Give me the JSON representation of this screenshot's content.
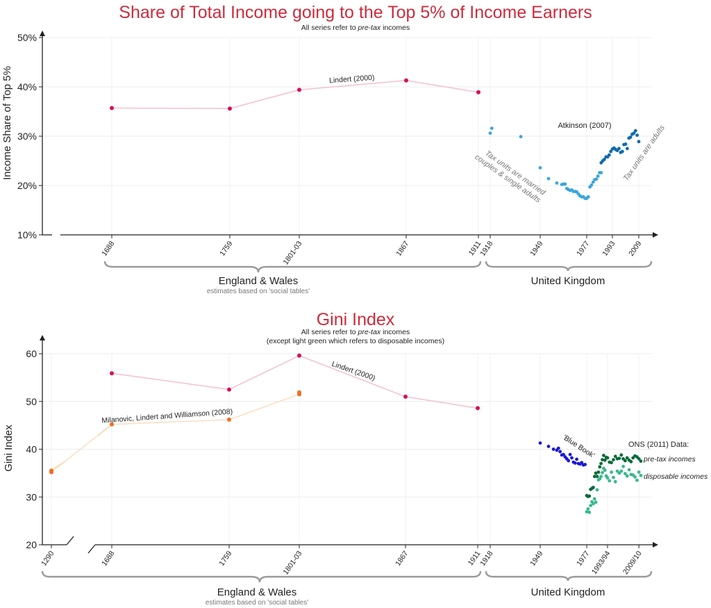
{
  "chart_data": [
    {
      "type": "scatter",
      "title": "Share of Total Income going to the Top 5% of Income Earners",
      "subtitle_prefix": "All series refer to ",
      "subtitle_em": "pre-tax",
      "subtitle_suffix": " incomes",
      "ylabel": "Income Share of Top 5%",
      "ylim": [
        10,
        50
      ],
      "y_ticks": [
        "10%",
        "20%",
        "30%",
        "40%",
        "50%"
      ],
      "x_ticks": [
        "1688",
        "1759",
        "1801-03",
        "1867",
        "1911",
        "1918",
        "1949",
        "1977",
        "1993",
        "2009"
      ],
      "regions": [
        {
          "label": "England & Wales",
          "sublabel": "estimates based on 'social tables'"
        },
        {
          "label": "United Kingdom",
          "sublabel": ""
        }
      ],
      "annotations": [
        "Lindert (2000)",
        "Atkinson (2007)",
        "Tax units are married couples & single adults",
        "Tax units are adults"
      ],
      "series": [
        {
          "name": "Lindert (2000)",
          "color": "#d6105a",
          "line_color": "#f4c4cf",
          "points": [
            [
              1688,
              35.7
            ],
            [
              1759,
              35.6
            ],
            [
              1801,
              39.4
            ],
            [
              1867,
              41.3
            ],
            [
              1911,
              38.9
            ]
          ]
        },
        {
          "name": "Atkinson (2007) - tax units are married couples & single adults",
          "color": "#3aa6dc",
          "points": [
            [
              1918,
              30.6
            ],
            [
              1919,
              31.6
            ],
            [
              1937,
              29.9
            ],
            [
              1949,
              23.6
            ],
            [
              1954,
              21.4
            ],
            [
              1959,
              20.5
            ],
            [
              1962,
              20.2
            ],
            [
              1963,
              20.3
            ],
            [
              1964,
              20.3
            ],
            [
              1965,
              19.4
            ],
            [
              1966,
              19.2
            ],
            [
              1967,
              19.0
            ],
            [
              1968,
              19.1
            ],
            [
              1969,
              18.8
            ],
            [
              1970,
              18.8
            ],
            [
              1971,
              18.7
            ],
            [
              1972,
              18.3
            ],
            [
              1973,
              17.9
            ],
            [
              1974,
              17.7
            ],
            [
              1975,
              17.7
            ],
            [
              1976,
              17.4
            ],
            [
              1977,
              17.4
            ],
            [
              1978,
              17.7
            ],
            [
              1979,
              19.7
            ],
            [
              1980,
              20.1
            ],
            [
              1981,
              20.7
            ],
            [
              1982,
              21.2
            ],
            [
              1983,
              21.3
            ],
            [
              1984,
              21.9
            ],
            [
              1985,
              22.6
            ],
            [
              1986,
              22.6
            ]
          ]
        },
        {
          "name": "Atkinson (2007) - tax units are adults",
          "color": "#0d6ab0",
          "points": [
            [
              1986,
              24.6
            ],
            [
              1987,
              25.0
            ],
            [
              1988,
              25.3
            ],
            [
              1989,
              25.8
            ],
            [
              1990,
              25.8
            ],
            [
              1991,
              26.2
            ],
            [
              1992,
              26.9
            ],
            [
              1993,
              27.4
            ],
            [
              1994,
              27.6
            ],
            [
              1995,
              27.3
            ],
            [
              1996,
              27.1
            ],
            [
              1997,
              27.5
            ],
            [
              1998,
              26.7
            ],
            [
              1999,
              26.9
            ],
            [
              2000,
              28.3
            ],
            [
              2001,
              28.4
            ],
            [
              2002,
              27.5
            ],
            [
              2003,
              29.6
            ],
            [
              2004,
              29.8
            ],
            [
              2005,
              30.4
            ],
            [
              2006,
              30.6
            ],
            [
              2007,
              31.1
            ],
            [
              2008,
              30.2
            ],
            [
              2009,
              28.9
            ]
          ]
        }
      ]
    },
    {
      "type": "scatter",
      "title": "Gini Index",
      "subtitle_prefix": "All series refer to ",
      "subtitle_em": "pre-tax",
      "subtitle_suffix": " incomes",
      "subtitle_line2": "(except light green which refers to disposable incomes)",
      "ylabel": "Gini Index",
      "ylim": [
        20,
        60
      ],
      "y_ticks": [
        "20",
        "30",
        "40",
        "50",
        "60"
      ],
      "x_ticks": [
        "1290",
        "1688",
        "1759",
        "1801-03",
        "1867",
        "1911",
        "1918",
        "1949",
        "1977",
        "1993/94",
        "2009/10"
      ],
      "regions": [
        {
          "label": "England & Wales",
          "sublabel": "estimates based on 'social tables'"
        },
        {
          "label": "United Kingdom",
          "sublabel": ""
        }
      ],
      "annotations": [
        "Lindert (2000)",
        "Milanovic, Lindert and Williamson (2008)",
        "'Blue Book'",
        "ONS (2011) Data:",
        "pre-tax incomes",
        "disposable incomes"
      ],
      "series": [
        {
          "name": "Lindert (2000)",
          "color": "#d6105a",
          "line_color": "#f4c4cf",
          "points": [
            [
              1688,
              55.9
            ],
            [
              1759,
              52.5
            ],
            [
              1801,
              59.6
            ],
            [
              1867,
              51.0
            ],
            [
              1911,
              48.6
            ]
          ]
        },
        {
          "name": "Milanovic, Lindert and Williamson (2008)",
          "color": "#ef6e23",
          "line_color": "#fbe0c4",
          "points": [
            [
              1290,
              35.5
            ],
            [
              1290,
              35.2
            ],
            [
              1688,
              45.2
            ],
            [
              1759,
              46.2
            ],
            [
              1801,
              51.5
            ],
            [
              1801,
              51.9
            ]
          ]
        },
        {
          "name": "'Blue Book'",
          "color": "#1a1ad6",
          "points": [
            [
              1949,
              41.3
            ],
            [
              1954,
              40.6
            ],
            [
              1957,
              40.0
            ],
            [
              1959,
              39.8
            ],
            [
              1960,
              40.2
            ],
            [
              1961,
              39.5
            ],
            [
              1962,
              38.8
            ],
            [
              1963,
              38.9
            ],
            [
              1964,
              38.4
            ],
            [
              1965,
              38.0
            ],
            [
              1966,
              37.6
            ],
            [
              1967,
              38.9
            ],
            [
              1968,
              38.2
            ],
            [
              1969,
              37.3
            ],
            [
              1970,
              37.1
            ],
            [
              1971,
              37.9
            ],
            [
              1972,
              37.0
            ],
            [
              1973,
              36.9
            ],
            [
              1974,
              37.2
            ],
            [
              1975,
              36.7
            ],
            [
              1976,
              36.8
            ]
          ]
        },
        {
          "name": "ONS (2011) Data: pre-tax incomes",
          "color": "#0b6b3a",
          "points": [
            [
              1977,
              30.3
            ],
            [
              1978,
              30.1
            ],
            [
              1979,
              30.2
            ],
            [
              1980,
              31.6
            ],
            [
              1981,
              31.8
            ],
            [
              1982,
              32.0
            ],
            [
              1983,
              34.3
            ],
            [
              1984,
              35.0
            ],
            [
              1985,
              34.3
            ],
            [
              1986,
              35.2
            ],
            [
              1987,
              36.3
            ],
            [
              1988,
              37.0
            ],
            [
              1989,
              37.8
            ],
            [
              1990,
              38.7
            ],
            [
              1991,
              37.7
            ],
            [
              1992,
              38.3
            ],
            [
              1993,
              38.2
            ],
            [
              1994,
              37.3
            ],
            [
              1995,
              37.2
            ],
            [
              1996,
              37.8
            ],
            [
              1997,
              38.5
            ],
            [
              1998,
              38.0
            ],
            [
              1999,
              38.1
            ],
            [
              2000,
              38.8
            ],
            [
              2001,
              38.0
            ],
            [
              2002,
              37.6
            ],
            [
              2003,
              38.2
            ],
            [
              2004,
              37.7
            ],
            [
              2005,
              37.4
            ],
            [
              2006,
              38.2
            ],
            [
              2007,
              38.6
            ],
            [
              2008,
              38.4
            ],
            [
              2009,
              38.0
            ],
            [
              2010,
              37.5
            ]
          ]
        },
        {
          "name": "ONS (2011) Data: disposable incomes",
          "color": "#39b98a",
          "points": [
            [
              1977,
              26.9
            ],
            [
              1978,
              27.5
            ],
            [
              1979,
              26.8
            ],
            [
              1980,
              28.2
            ],
            [
              1981,
              29.0
            ],
            [
              1982,
              28.6
            ],
            [
              1983,
              29.6
            ],
            [
              1984,
              28.9
            ],
            [
              1985,
              31.5
            ],
            [
              1986,
              33.6
            ],
            [
              1987,
              33.8
            ],
            [
              1988,
              34.3
            ],
            [
              1989,
              35.1
            ],
            [
              1990,
              36.0
            ],
            [
              1991,
              35.6
            ],
            [
              1992,
              34.4
            ],
            [
              1993,
              34.0
            ],
            [
              1994,
              33.4
            ],
            [
              1995,
              35.2
            ],
            [
              1996,
              34.1
            ],
            [
              1997,
              33.2
            ],
            [
              1998,
              35.4
            ],
            [
              1999,
              35.0
            ],
            [
              2000,
              35.4
            ],
            [
              2001,
              36.4
            ],
            [
              2002,
              34.9
            ],
            [
              2003,
              34.4
            ],
            [
              2004,
              35.7
            ],
            [
              2005,
              34.7
            ],
            [
              2006,
              34.6
            ],
            [
              2007,
              34.2
            ],
            [
              2008,
              33.5
            ],
            [
              2009,
              35.2
            ],
            [
              2010,
              34.5
            ]
          ]
        }
      ]
    }
  ]
}
